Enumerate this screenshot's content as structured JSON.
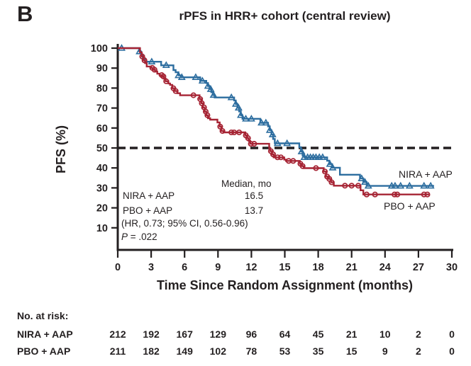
{
  "panel_label": "B",
  "title": "rPFS in HRR+ cohort (central review)",
  "colors": {
    "nira": "#2c6d9f",
    "pbo": "#a62434",
    "ink": "#231f20",
    "background": "#ffffff"
  },
  "annotation": {
    "median_header": "Median, mo",
    "rows": [
      {
        "label": "NIRA + AAP",
        "value": "16.5"
      },
      {
        "label": "PBO + AAP",
        "value": "13.7"
      }
    ],
    "hr_line": "(HR, 0.73; 95% CI, 0.56-0.96)",
    "p_label": "P",
    "p_rest": " = .022"
  },
  "curve_labels": {
    "nira": "NIRA + AAP",
    "pbo": "PBO + AAP"
  },
  "risk_table": {
    "heading": "No. at risk:",
    "timepoints": [
      0,
      3,
      6,
      9,
      12,
      15,
      18,
      21,
      24,
      27,
      30
    ],
    "rows": [
      {
        "label": "NIRA + AAP",
        "values": [
          212,
          192,
          167,
          129,
          96,
          64,
          45,
          21,
          10,
          2,
          0
        ]
      },
      {
        "label": "PBO + AAP",
        "values": [
          211,
          182,
          149,
          102,
          78,
          53,
          35,
          15,
          9,
          2,
          0
        ]
      }
    ]
  },
  "chart_data": {
    "type": "line",
    "subtype": "kaplan_meier_step",
    "title": "rPFS in HRR+ cohort (central review)",
    "xlabel": "Time Since Random Assignment (months)",
    "ylabel": "PFS (%)",
    "xlim": [
      0,
      30
    ],
    "ylim": [
      0,
      100
    ],
    "xticks": [
      0,
      3,
      6,
      9,
      12,
      15,
      18,
      21,
      24,
      27,
      30
    ],
    "yticks": [
      10,
      20,
      30,
      40,
      50,
      60,
      70,
      80,
      90,
      100
    ],
    "grid": false,
    "legend_position": "curve-end-labels",
    "reference_line": {
      "y": 50,
      "style": "dashed",
      "color": "#231f20"
    },
    "hr_text": "(HR, 0.73; 95% CI, 0.56-0.96)",
    "p_value": ".022",
    "series": [
      {
        "name": "NIRA + AAP",
        "color": "#2c6d9f",
        "marker": "triangle",
        "median_months": 16.5,
        "steps": [
          [
            0,
            100
          ],
          [
            1.95,
            98.3
          ],
          [
            2.1,
            96.6
          ],
          [
            2.25,
            94.9
          ],
          [
            2.45,
            93.2
          ],
          [
            3.9,
            91.4
          ],
          [
            5.0,
            89.0
          ],
          [
            5.2,
            87.9
          ],
          [
            5.45,
            86.3
          ],
          [
            5.7,
            85.4
          ],
          [
            7.4,
            83.6
          ],
          [
            7.95,
            82.5
          ],
          [
            8.1,
            81.0
          ],
          [
            8.25,
            79.4
          ],
          [
            8.4,
            77.9
          ],
          [
            8.55,
            76.5
          ],
          [
            8.7,
            75.3
          ],
          [
            10.45,
            73.8
          ],
          [
            10.6,
            72.0
          ],
          [
            10.75,
            70.1
          ],
          [
            10.9,
            68.3
          ],
          [
            11.05,
            66.4
          ],
          [
            11.2,
            64.6
          ],
          [
            12.8,
            62.6
          ],
          [
            13.5,
            60.8
          ],
          [
            13.65,
            58.9
          ],
          [
            13.8,
            56.7
          ],
          [
            13.95,
            54.5
          ],
          [
            14.1,
            52.3
          ],
          [
            16.3,
            50.4
          ],
          [
            16.45,
            48.2
          ],
          [
            16.6,
            46.2
          ],
          [
            16.75,
            45.3
          ],
          [
            18.8,
            43.6
          ],
          [
            19.0,
            41.9
          ],
          [
            19.25,
            40.1
          ],
          [
            19.95,
            36.6
          ],
          [
            21.75,
            34.7
          ],
          [
            22.05,
            32.9
          ],
          [
            22.35,
            31.0
          ],
          [
            28.4,
            31.0
          ]
        ],
        "censor_months": [
          0.35,
          1.95,
          3.05,
          4.35,
          5.45,
          5.75,
          7.0,
          7.6,
          8.1,
          8.35,
          8.6,
          10.2,
          10.6,
          10.85,
          11.05,
          11.5,
          12.0,
          12.9,
          13.3,
          13.65,
          13.9,
          14.35,
          15.2,
          16.5,
          16.75,
          17.05,
          17.3,
          17.55,
          17.8,
          18.1,
          18.4,
          19.05,
          19.3,
          21.9,
          22.2,
          22.5,
          24.6,
          24.9,
          25.4,
          26.2,
          27.5,
          28.1
        ]
      },
      {
        "name": "PBO + AAP",
        "color": "#a62434",
        "marker": "circle",
        "median_months": 13.7,
        "steps": [
          [
            0,
            100
          ],
          [
            2.0,
            97.9
          ],
          [
            2.15,
            95.8
          ],
          [
            2.3,
            93.9
          ],
          [
            2.45,
            92.5
          ],
          [
            2.6,
            90.8
          ],
          [
            3.0,
            90.1
          ],
          [
            3.15,
            89.2
          ],
          [
            3.35,
            88.3
          ],
          [
            3.55,
            87.2
          ],
          [
            3.75,
            86.5
          ],
          [
            4.0,
            85.8
          ],
          [
            4.15,
            84.7
          ],
          [
            4.3,
            83.4
          ],
          [
            4.55,
            82.3
          ],
          [
            4.7,
            81.6
          ],
          [
            4.9,
            79.9
          ],
          [
            5.1,
            78.5
          ],
          [
            5.35,
            77.4
          ],
          [
            5.6,
            76.4
          ],
          [
            7.35,
            74.5
          ],
          [
            7.5,
            72.4
          ],
          [
            7.65,
            70.3
          ],
          [
            7.8,
            68.2
          ],
          [
            7.95,
            66.4
          ],
          [
            8.1,
            64.9
          ],
          [
            8.3,
            64.2
          ],
          [
            8.95,
            62.8
          ],
          [
            9.15,
            60.7
          ],
          [
            9.3,
            58.5
          ],
          [
            9.5,
            57.8
          ],
          [
            11.45,
            56.3
          ],
          [
            11.6,
            54.9
          ],
          [
            11.75,
            53.5
          ],
          [
            11.9,
            52.1
          ],
          [
            13.6,
            50.0
          ],
          [
            13.7,
            48.4
          ],
          [
            13.85,
            46.8
          ],
          [
            14.0,
            45.3
          ],
          [
            14.95,
            44.2
          ],
          [
            15.1,
            43.5
          ],
          [
            16.35,
            42.1
          ],
          [
            16.55,
            40.9
          ],
          [
            16.7,
            39.9
          ],
          [
            18.5,
            38.2
          ],
          [
            18.7,
            35.7
          ],
          [
            18.95,
            34.5
          ],
          [
            19.15,
            32.8
          ],
          [
            19.4,
            31.1
          ],
          [
            21.8,
            28.8
          ],
          [
            22.05,
            26.7
          ],
          [
            28.0,
            26.7
          ]
        ],
        "censor_months": [
          2.2,
          2.4,
          3.1,
          3.3,
          3.95,
          4.1,
          4.35,
          5.0,
          5.2,
          6.8,
          7.4,
          7.55,
          7.75,
          7.9,
          8.05,
          9.2,
          9.4,
          10.2,
          10.45,
          10.9,
          11.5,
          11.7,
          11.95,
          12.25,
          13.75,
          13.95,
          14.35,
          14.65,
          15.35,
          15.75,
          16.4,
          16.6,
          17.8,
          18.6,
          18.8,
          19.0,
          19.2,
          20.4,
          21.0,
          21.6,
          22.35,
          23.1,
          24.85,
          25.1,
          27.5,
          27.8
        ]
      }
    ],
    "risk_table": {
      "heading": "No. at risk:",
      "timepoints": [
        0,
        3,
        6,
        9,
        12,
        15,
        18,
        21,
        24,
        27,
        30
      ],
      "rows": [
        {
          "label": "NIRA + AAP",
          "values": [
            212,
            192,
            167,
            129,
            96,
            64,
            45,
            21,
            10,
            2,
            0
          ]
        },
        {
          "label": "PBO + AAP",
          "values": [
            211,
            182,
            149,
            102,
            78,
            53,
            35,
            15,
            9,
            2,
            0
          ]
        }
      ]
    }
  }
}
